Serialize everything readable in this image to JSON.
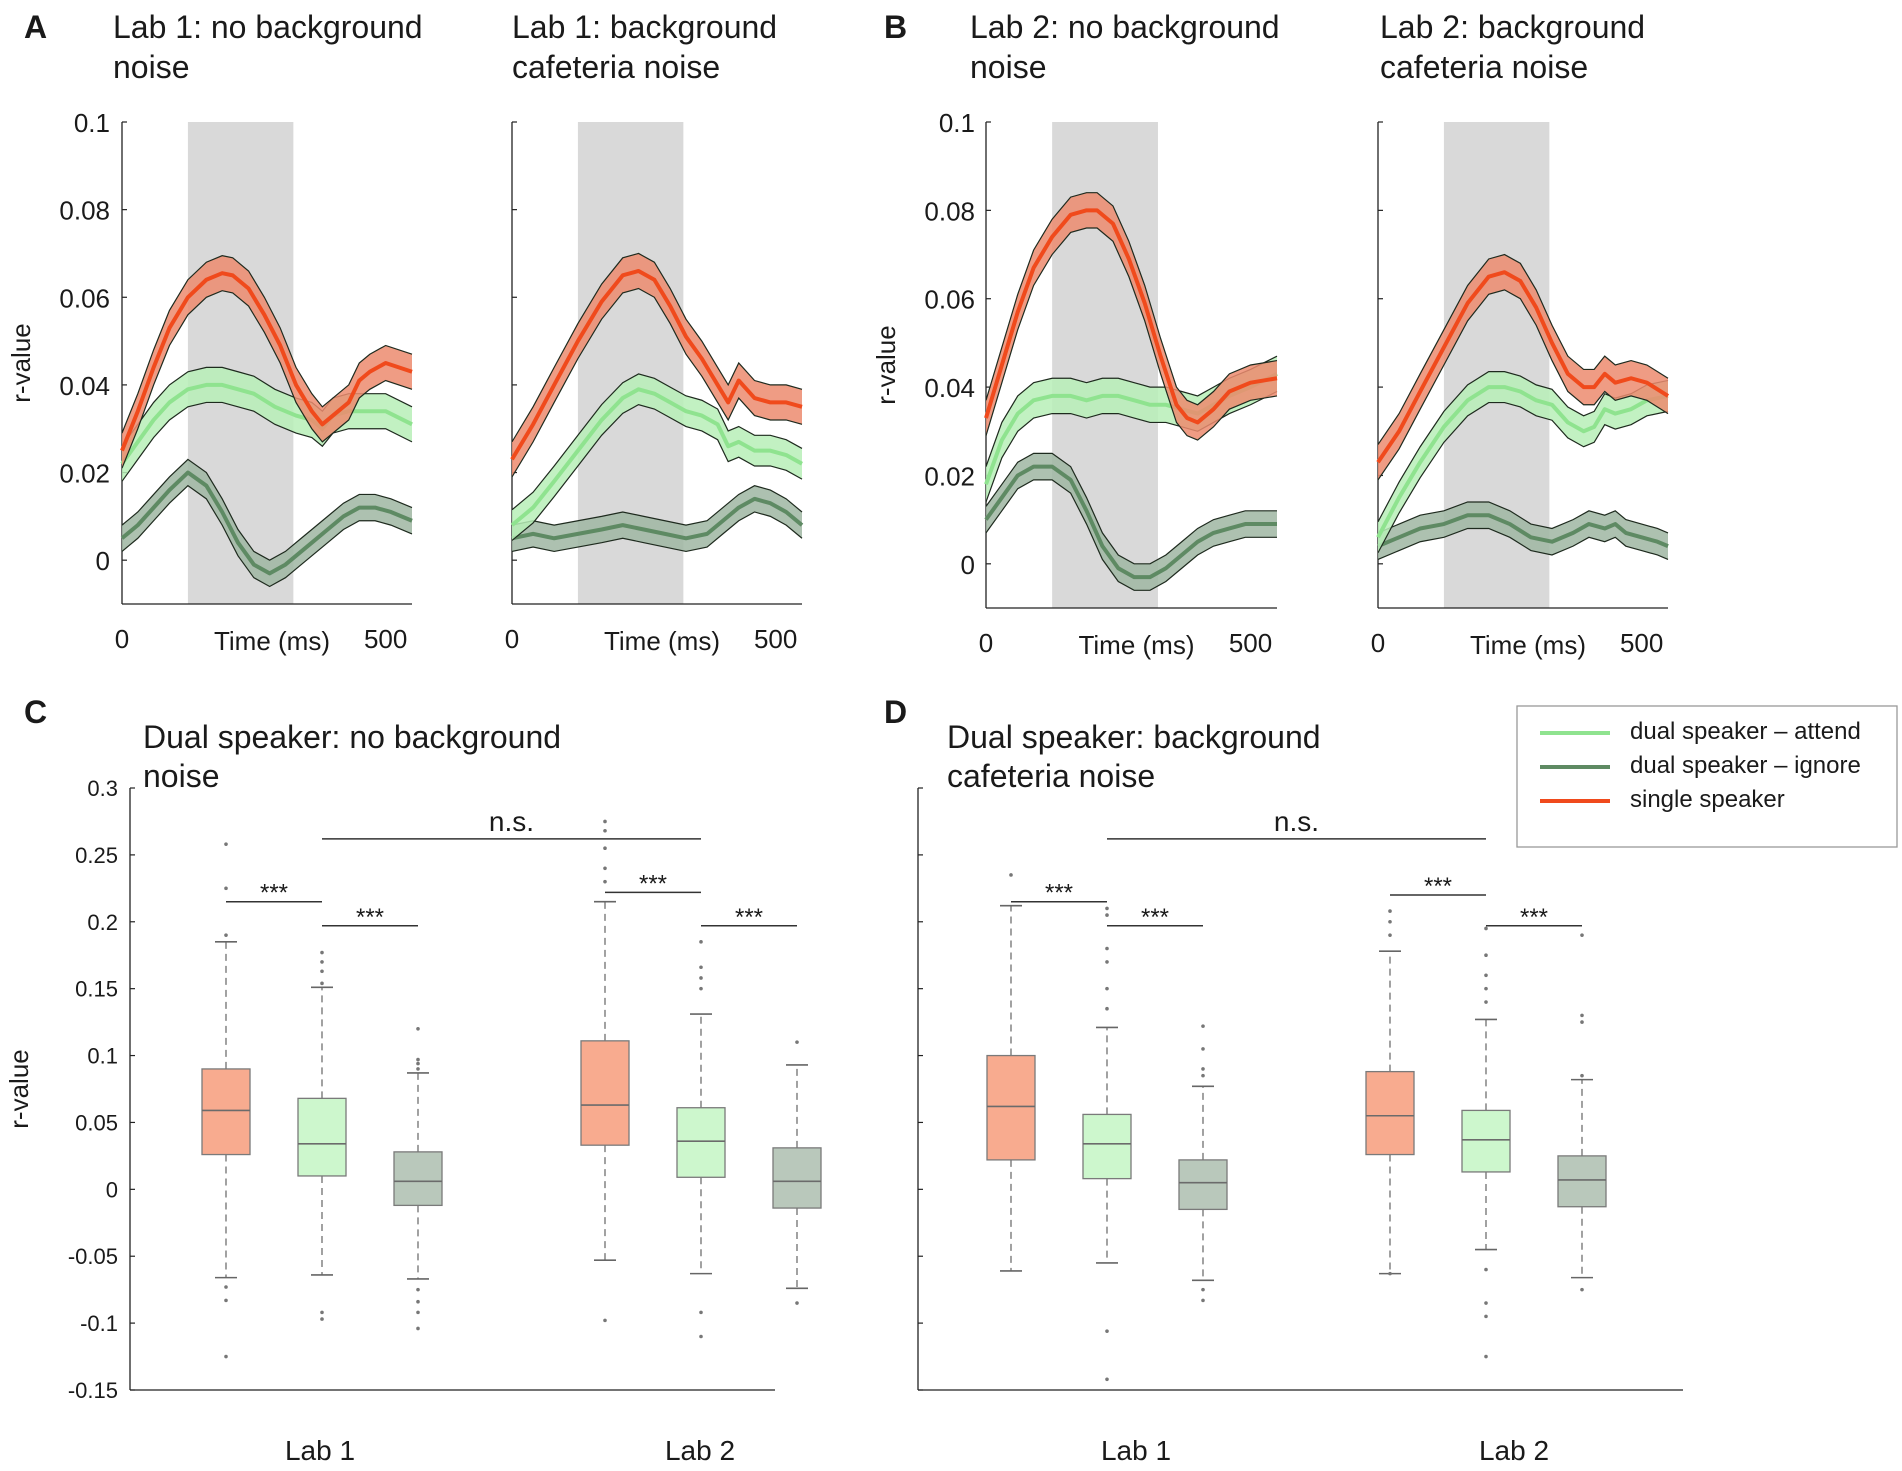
{
  "colors": {
    "single": "#f04a1c",
    "single_band": "#ec8b6f",
    "attend": "#8fe38f",
    "attend_band": "#b7efb7",
    "ignore": "#5e8a63",
    "ignore_band": "#9fb6a2",
    "box_single": "#f8ab8f",
    "box_attend": "#cdf7cd",
    "box_ignore": "#b9c8bb",
    "shade": "#d9d9d9"
  },
  "chart_data": [
    {
      "panel": "A",
      "type": "line",
      "title": "Lab 1: no background noise",
      "title_lines": [
        "Lab 1: no background",
        "noise"
      ],
      "xlabel": "Time (ms)",
      "ylabel": "r-value",
      "x_tick_labels": [
        "0",
        "500"
      ],
      "y_tick_labels": [
        "0.1",
        "0.08",
        "0.06",
        "0.04",
        "0.02",
        "0"
      ],
      "xlim": [
        0,
        550
      ],
      "ylim": [
        -0.01,
        0.1
      ],
      "shaded_window_ms": [
        125,
        325
      ],
      "series": [
        {
          "key": "single",
          "name": "single speaker",
          "x": [
            0,
            30,
            60,
            90,
            125,
            160,
            190,
            210,
            240,
            270,
            300,
            330,
            360,
            380,
            400,
            430,
            450,
            470,
            500,
            550
          ],
          "y": [
            0.025,
            0.034,
            0.044,
            0.053,
            0.06,
            0.064,
            0.0655,
            0.065,
            0.062,
            0.056,
            0.049,
            0.04,
            0.034,
            0.031,
            0.033,
            0.036,
            0.041,
            0.043,
            0.045,
            0.043
          ],
          "band": 0.004
        },
        {
          "key": "attend",
          "name": "dual speaker – attend",
          "x": [
            0,
            30,
            60,
            90,
            125,
            160,
            190,
            220,
            250,
            290,
            330,
            360,
            380,
            400,
            430,
            460,
            500,
            550
          ],
          "y": [
            0.022,
            0.027,
            0.032,
            0.036,
            0.039,
            0.04,
            0.04,
            0.039,
            0.038,
            0.035,
            0.033,
            0.032,
            0.03,
            0.033,
            0.034,
            0.034,
            0.034,
            0.031
          ],
          "band": 0.004
        },
        {
          "key": "ignore",
          "name": "dual speaker – ignore",
          "x": [
            0,
            30,
            60,
            90,
            125,
            160,
            190,
            220,
            250,
            280,
            310,
            340,
            360,
            390,
            420,
            450,
            480,
            510,
            550
          ],
          "y": [
            0.005,
            0.008,
            0.012,
            0.016,
            0.02,
            0.017,
            0.011,
            0.004,
            -0.001,
            -0.003,
            -0.001,
            0.002,
            0.004,
            0.007,
            0.01,
            0.012,
            0.012,
            0.011,
            0.009
          ],
          "band": 0.003
        }
      ]
    },
    {
      "panel": "A2",
      "type": "line",
      "title": "Lab 1: background cafeteria noise",
      "title_lines": [
        "Lab 1: background",
        "cafeteria noise"
      ],
      "xlabel": "Time (ms)",
      "ylabel": "",
      "x_tick_labels": [
        "0",
        "500"
      ],
      "y_tick_labels": [],
      "xlim": [
        0,
        550
      ],
      "ylim": [
        -0.01,
        0.1
      ],
      "shaded_window_ms": [
        125,
        325
      ],
      "series": [
        {
          "key": "single",
          "name": "single speaker",
          "x": [
            0,
            40,
            80,
            125,
            170,
            210,
            240,
            270,
            300,
            330,
            360,
            390,
            410,
            430,
            460,
            490,
            520,
            550
          ],
          "y": [
            0.023,
            0.031,
            0.04,
            0.05,
            0.059,
            0.065,
            0.066,
            0.064,
            0.058,
            0.051,
            0.046,
            0.04,
            0.036,
            0.041,
            0.037,
            0.036,
            0.036,
            0.035
          ],
          "band": 0.004
        },
        {
          "key": "attend",
          "name": "dual speaker – attend",
          "x": [
            0,
            40,
            80,
            125,
            170,
            210,
            240,
            270,
            300,
            330,
            360,
            390,
            410,
            430,
            460,
            490,
            520,
            550
          ],
          "y": [
            0.008,
            0.012,
            0.018,
            0.025,
            0.032,
            0.037,
            0.039,
            0.038,
            0.036,
            0.034,
            0.033,
            0.031,
            0.026,
            0.027,
            0.025,
            0.025,
            0.024,
            0.022
          ],
          "band": 0.0035
        },
        {
          "key": "ignore",
          "name": "dual speaker – ignore",
          "x": [
            0,
            40,
            80,
            125,
            170,
            210,
            250,
            290,
            330,
            370,
            400,
            430,
            460,
            490,
            520,
            550
          ],
          "y": [
            0.005,
            0.006,
            0.005,
            0.006,
            0.007,
            0.008,
            0.007,
            0.006,
            0.005,
            0.006,
            0.009,
            0.012,
            0.014,
            0.013,
            0.011,
            0.008
          ],
          "band": 0.003
        }
      ]
    },
    {
      "panel": "B",
      "type": "line",
      "title": "Lab 2: no background noise",
      "title_lines": [
        "Lab 2: no background",
        "noise"
      ],
      "xlabel": "Time (ms)",
      "ylabel": "r-value",
      "x_tick_labels": [
        "0",
        "500"
      ],
      "y_tick_labels": [
        "0.1",
        "0.08",
        "0.06",
        "0.04",
        "0.02",
        "0"
      ],
      "xlim": [
        0,
        550
      ],
      "ylim": [
        -0.01,
        0.1
      ],
      "shaded_window_ms": [
        125,
        325
      ],
      "series": [
        {
          "key": "single",
          "name": "single speaker",
          "x": [
            0,
            30,
            60,
            90,
            125,
            160,
            190,
            210,
            240,
            270,
            300,
            330,
            360,
            380,
            400,
            430,
            460,
            500,
            550
          ],
          "y": [
            0.033,
            0.045,
            0.057,
            0.067,
            0.074,
            0.079,
            0.08,
            0.08,
            0.077,
            0.069,
            0.059,
            0.047,
            0.036,
            0.033,
            0.032,
            0.035,
            0.039,
            0.041,
            0.042
          ],
          "band": 0.004
        },
        {
          "key": "attend",
          "name": "dual speaker – attend",
          "x": [
            0,
            30,
            60,
            90,
            125,
            160,
            190,
            220,
            250,
            280,
            310,
            340,
            370,
            400,
            430,
            460,
            500,
            550
          ],
          "y": [
            0.018,
            0.028,
            0.034,
            0.037,
            0.038,
            0.038,
            0.037,
            0.038,
            0.038,
            0.037,
            0.036,
            0.036,
            0.035,
            0.034,
            0.036,
            0.038,
            0.04,
            0.043
          ],
          "band": 0.004
        },
        {
          "key": "ignore",
          "name": "dual speaker – ignore",
          "x": [
            0,
            30,
            60,
            90,
            125,
            160,
            190,
            220,
            250,
            280,
            310,
            340,
            370,
            400,
            430,
            460,
            490,
            520,
            550
          ],
          "y": [
            0.01,
            0.015,
            0.02,
            0.022,
            0.022,
            0.019,
            0.012,
            0.004,
            -0.001,
            -0.003,
            -0.003,
            -0.001,
            0.002,
            0.005,
            0.007,
            0.008,
            0.009,
            0.009,
            0.009
          ],
          "band": 0.003
        }
      ]
    },
    {
      "panel": "B2",
      "type": "line",
      "title": "Lab 2: background cafeteria noise",
      "title_lines": [
        "Lab 2: background",
        "cafeteria noise"
      ],
      "xlabel": "Time (ms)",
      "ylabel": "",
      "x_tick_labels": [
        "0",
        "500"
      ],
      "y_tick_labels": [],
      "xlim": [
        0,
        550
      ],
      "ylim": [
        -0.01,
        0.1
      ],
      "shaded_window_ms": [
        125,
        325
      ],
      "series": [
        {
          "key": "single",
          "name": "single speaker",
          "x": [
            0,
            40,
            80,
            125,
            170,
            210,
            240,
            270,
            300,
            330,
            360,
            390,
            410,
            430,
            450,
            480,
            510,
            550
          ],
          "y": [
            0.023,
            0.03,
            0.039,
            0.049,
            0.059,
            0.065,
            0.066,
            0.064,
            0.058,
            0.05,
            0.043,
            0.04,
            0.04,
            0.043,
            0.041,
            0.042,
            0.041,
            0.038
          ],
          "band": 0.004
        },
        {
          "key": "attend",
          "name": "dual speaker – attend",
          "x": [
            0,
            40,
            80,
            125,
            170,
            210,
            240,
            270,
            300,
            330,
            360,
            390,
            410,
            430,
            450,
            480,
            510,
            550
          ],
          "y": [
            0.006,
            0.015,
            0.023,
            0.031,
            0.037,
            0.04,
            0.04,
            0.039,
            0.037,
            0.036,
            0.032,
            0.03,
            0.031,
            0.035,
            0.034,
            0.035,
            0.037,
            0.038
          ],
          "band": 0.0035
        },
        {
          "key": "ignore",
          "name": "dual speaker – ignore",
          "x": [
            0,
            40,
            80,
            125,
            170,
            210,
            250,
            290,
            330,
            370,
            400,
            430,
            450,
            470,
            500,
            530,
            550
          ],
          "y": [
            0.004,
            0.006,
            0.008,
            0.009,
            0.011,
            0.011,
            0.009,
            0.006,
            0.005,
            0.007,
            0.009,
            0.008,
            0.009,
            0.007,
            0.006,
            0.005,
            0.004
          ],
          "band": 0.003
        }
      ]
    },
    {
      "panel": "C",
      "type": "box",
      "title": "Dual speaker: no background noise",
      "title_lines": [
        "Dual speaker: no background",
        "noise"
      ],
      "ylabel": "r-value",
      "y_tick_labels": [
        "0.3",
        "0.25",
        "0.2",
        "0.15",
        "0.1",
        "0.05",
        "0",
        "-0.05",
        "-0.1",
        "-0.15"
      ],
      "ylim": [
        -0.15,
        0.3
      ],
      "categories": [
        "Lab 1",
        "Lab 2"
      ],
      "boxes": [
        {
          "group": 0,
          "kind": "single",
          "q1": 0.026,
          "median": 0.059,
          "q3": 0.09,
          "whislo": -0.066,
          "whishi": 0.185,
          "fliers": [
            0.19,
            0.225,
            0.258,
            -0.073,
            -0.083,
            -0.125
          ]
        },
        {
          "group": 0,
          "kind": "attend",
          "q1": 0.01,
          "median": 0.034,
          "q3": 0.068,
          "whislo": -0.064,
          "whishi": 0.151,
          "fliers": [
            0.154,
            0.163,
            0.17,
            0.177,
            -0.092,
            -0.097
          ]
        },
        {
          "group": 0,
          "kind": "ignore",
          "q1": -0.012,
          "median": 0.006,
          "q3": 0.028,
          "whislo": -0.067,
          "whishi": 0.087,
          "fliers": [
            0.09,
            0.094,
            0.097,
            0.12,
            -0.075,
            -0.084,
            -0.092,
            -0.104
          ]
        },
        {
          "group": 1,
          "kind": "single",
          "q1": 0.033,
          "median": 0.063,
          "q3": 0.111,
          "whislo": -0.053,
          "whishi": 0.215,
          "fliers": [
            0.23,
            0.24,
            0.255,
            0.268,
            0.275,
            -0.098
          ]
        },
        {
          "group": 1,
          "kind": "attend",
          "q1": 0.009,
          "median": 0.036,
          "q3": 0.061,
          "whislo": -0.063,
          "whishi": 0.131,
          "fliers": [
            0.15,
            0.158,
            0.166,
            0.185,
            -0.092,
            -0.11
          ]
        },
        {
          "group": 1,
          "kind": "ignore",
          "q1": -0.014,
          "median": 0.006,
          "q3": 0.031,
          "whislo": -0.074,
          "whishi": 0.093,
          "fliers": [
            0.11,
            -0.085
          ]
        }
      ],
      "significance": [
        {
          "from": 0,
          "to": 1,
          "y": 0.215,
          "label": "***"
        },
        {
          "from": 1,
          "to": 2,
          "y": 0.197,
          "label": "***"
        },
        {
          "from": 3,
          "to": 4,
          "y": 0.222,
          "label": "***"
        },
        {
          "from": 4,
          "to": 5,
          "y": 0.197,
          "label": "***"
        },
        {
          "from": 1,
          "to": 4,
          "y": 0.262,
          "label": "n.s."
        }
      ]
    },
    {
      "panel": "D",
      "type": "box",
      "title": "Dual speaker: background cafeteria noise",
      "title_lines": [
        "Dual speaker: background",
        "cafeteria noise"
      ],
      "ylabel": "",
      "y_tick_labels": [],
      "ylim": [
        -0.15,
        0.3
      ],
      "categories": [
        "Lab 1",
        "Lab 2"
      ],
      "boxes": [
        {
          "group": 0,
          "kind": "single",
          "q1": 0.022,
          "median": 0.062,
          "q3": 0.1,
          "whislo": -0.061,
          "whishi": 0.212,
          "fliers": [
            0.235
          ]
        },
        {
          "group": 0,
          "kind": "attend",
          "q1": 0.008,
          "median": 0.034,
          "q3": 0.056,
          "whislo": -0.055,
          "whishi": 0.121,
          "fliers": [
            0.135,
            0.15,
            0.17,
            0.18,
            0.205,
            0.21,
            -0.106,
            -0.142
          ]
        },
        {
          "group": 0,
          "kind": "ignore",
          "q1": -0.015,
          "median": 0.005,
          "q3": 0.022,
          "whislo": -0.068,
          "whishi": 0.077,
          "fliers": [
            0.085,
            0.09,
            0.105,
            0.122,
            -0.075,
            -0.083
          ]
        },
        {
          "group": 1,
          "kind": "single",
          "q1": 0.026,
          "median": 0.055,
          "q3": 0.088,
          "whislo": -0.063,
          "whishi": 0.178,
          "fliers": [
            0.19,
            0.2,
            0.208,
            -0.063
          ]
        },
        {
          "group": 1,
          "kind": "attend",
          "q1": 0.013,
          "median": 0.037,
          "q3": 0.059,
          "whislo": -0.045,
          "whishi": 0.127,
          "fliers": [
            0.14,
            0.15,
            0.16,
            0.175,
            0.195,
            -0.06,
            -0.085,
            -0.095,
            -0.125
          ]
        },
        {
          "group": 1,
          "kind": "ignore",
          "q1": -0.013,
          "median": 0.007,
          "q3": 0.025,
          "whislo": -0.066,
          "whishi": 0.082,
          "fliers": [
            0.085,
            0.125,
            0.13,
            0.19,
            -0.075
          ]
        }
      ],
      "significance": [
        {
          "from": 0,
          "to": 1,
          "y": 0.215,
          "label": "***"
        },
        {
          "from": 1,
          "to": 2,
          "y": 0.197,
          "label": "***"
        },
        {
          "from": 3,
          "to": 4,
          "y": 0.22,
          "label": "***"
        },
        {
          "from": 4,
          "to": 5,
          "y": 0.197,
          "label": "***"
        },
        {
          "from": 1,
          "to": 4,
          "y": 0.262,
          "label": "n.s."
        }
      ]
    }
  ],
  "panel_letters": [
    "A",
    "B",
    "C",
    "D"
  ],
  "legend": {
    "entries": [
      {
        "key": "attend",
        "label": "dual speaker – attend"
      },
      {
        "key": "ignore",
        "label": "dual speaker – ignore"
      },
      {
        "key": "single",
        "label": "single speaker"
      }
    ]
  }
}
